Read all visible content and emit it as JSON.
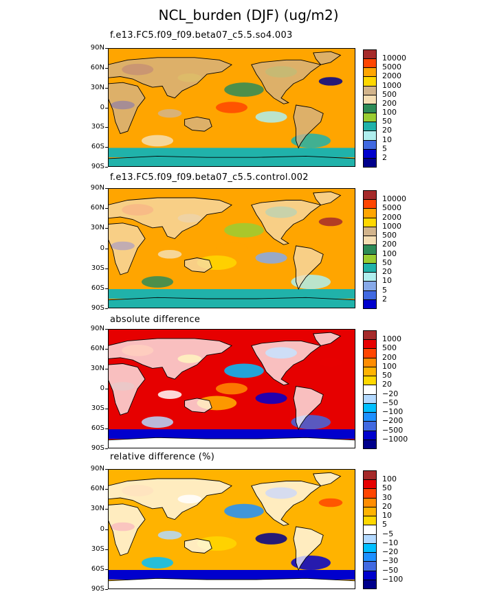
{
  "title": "NCL_burden (DJF) (ug/m2)",
  "lat_ticks": [
    "90N",
    "60N",
    "30N",
    "0",
    "30S",
    "60S",
    "90S"
  ],
  "panels": [
    {
      "subtitle": "f.e13.FC5.f09_f09.beta07_c5.5.so4.003",
      "levels": [
        "10000",
        "5000",
        "2000",
        "1000",
        "500",
        "200",
        "100",
        "50",
        "20",
        "10",
        "5",
        "2"
      ],
      "colors": [
        "#a52a2a",
        "#ff4500",
        "#ffa500",
        "#ffd700",
        "#d2b48c",
        "#f5deb3",
        "#2e8b57",
        "#9acd32",
        "#20b2aa",
        "#afeeee",
        "#4169e1",
        "#0000cd",
        "#00008b"
      ],
      "land_color": "#d2b48c",
      "ocean_color": "#ffa500"
    },
    {
      "subtitle": "f.e13.FC5.f09_f09.beta07_c5.5.control.002",
      "levels": [
        "10000",
        "5000",
        "2000",
        "1000",
        "500",
        "200",
        "100",
        "50",
        "20",
        "10",
        "5",
        "2"
      ],
      "colors": [
        "#a52a2a",
        "#ff4500",
        "#ffa500",
        "#ffd700",
        "#d2b48c",
        "#f5deb3",
        "#2e8b57",
        "#9acd32",
        "#20b2aa",
        "#afeeee",
        "#87a9e8",
        "#4169e1",
        "#0000cd"
      ],
      "land_color": "#f5deb3",
      "ocean_color": "#ffa500"
    },
    {
      "subtitle": "absolute difference",
      "levels": [
        "1000",
        "500",
        "200",
        "100",
        "50",
        "20",
        "−20",
        "−50",
        "−100",
        "−200",
        "−500",
        "−1000"
      ],
      "colors": [
        "#a52a2a",
        "#e60000",
        "#ff4500",
        "#ff8c00",
        "#ffb300",
        "#ffd700",
        "#ffffff",
        "#b3d9ff",
        "#00bfff",
        "#1e90ff",
        "#4169e1",
        "#0000cd",
        "#00008b"
      ],
      "land_color": "#ffffff",
      "ocean_color": "#e60000"
    },
    {
      "subtitle": "relative difference (%)",
      "levels": [
        "100",
        "50",
        "30",
        "20",
        "10",
        "5",
        "−5",
        "−10",
        "−20",
        "−30",
        "−50",
        "−100"
      ],
      "colors": [
        "#a52a2a",
        "#e60000",
        "#ff4500",
        "#ff8c00",
        "#ffb300",
        "#ffd700",
        "#ffffff",
        "#b3d9ff",
        "#00bfff",
        "#1e90ff",
        "#4169e1",
        "#0000cd",
        "#00008b"
      ],
      "land_color": "#ffffff",
      "ocean_color": "#ffb300"
    }
  ]
}
